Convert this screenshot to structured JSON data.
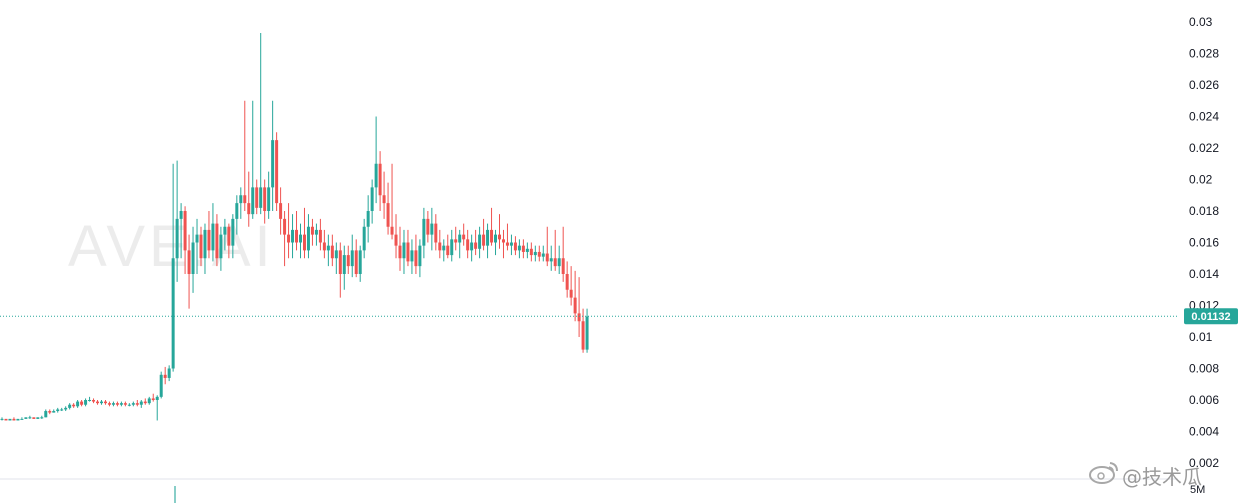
{
  "chart_data": {
    "type": "candlestick",
    "title": "",
    "xlabel": "",
    "ylabel": "",
    "ylim": [
      0.002,
      0.03
    ],
    "y_ticks": [
      "0.03",
      "0.028",
      "0.026",
      "0.024",
      "0.022",
      "0.02",
      "0.018",
      "0.016",
      "0.014",
      "0.012",
      "0.01",
      "0.008",
      "0.006",
      "0.004",
      "0.002"
    ],
    "grid": false,
    "current_price": 0.01132,
    "current_price_label": "0.01132",
    "interval_label": "5M",
    "colors": {
      "up": "#26a69a",
      "down": "#ef5350",
      "price_line": "#26a69a",
      "axis_text": "#131722"
    },
    "candles": [
      [
        0.0048,
        0.0049,
        0.0047,
        0.0048
      ],
      [
        0.0048,
        0.0048,
        0.0047,
        0.0047
      ],
      [
        0.0047,
        0.0048,
        0.0047,
        0.0048
      ],
      [
        0.0048,
        0.0049,
        0.0047,
        0.0047
      ],
      [
        0.0047,
        0.0048,
        0.0047,
        0.0048
      ],
      [
        0.0048,
        0.0049,
        0.0048,
        0.0048
      ],
      [
        0.0048,
        0.0049,
        0.0048,
        0.0049
      ],
      [
        0.0049,
        0.005,
        0.0048,
        0.0049
      ],
      [
        0.0049,
        0.0049,
        0.0048,
        0.0048
      ],
      [
        0.0048,
        0.0049,
        0.0048,
        0.0049
      ],
      [
        0.0049,
        0.005,
        0.0048,
        0.0049
      ],
      [
        0.0049,
        0.0054,
        0.0049,
        0.0053
      ],
      [
        0.0053,
        0.0054,
        0.0051,
        0.0052
      ],
      [
        0.0052,
        0.0054,
        0.0052,
        0.0053
      ],
      [
        0.0053,
        0.0055,
        0.0052,
        0.0054
      ],
      [
        0.0054,
        0.0055,
        0.0053,
        0.0054
      ],
      [
        0.0054,
        0.0056,
        0.0053,
        0.0055
      ],
      [
        0.0055,
        0.0058,
        0.0054,
        0.0057
      ],
      [
        0.0057,
        0.0058,
        0.0055,
        0.0056
      ],
      [
        0.0056,
        0.006,
        0.0055,
        0.0059
      ],
      [
        0.0059,
        0.006,
        0.0056,
        0.0057
      ],
      [
        0.0057,
        0.0061,
        0.0056,
        0.006
      ],
      [
        0.006,
        0.0062,
        0.0059,
        0.006
      ],
      [
        0.006,
        0.0061,
        0.0058,
        0.0059
      ],
      [
        0.0059,
        0.006,
        0.0057,
        0.0058
      ],
      [
        0.0058,
        0.006,
        0.0057,
        0.0059
      ],
      [
        0.0059,
        0.006,
        0.0057,
        0.0058
      ],
      [
        0.0058,
        0.0059,
        0.0056,
        0.0057
      ],
      [
        0.0057,
        0.0059,
        0.0056,
        0.0058
      ],
      [
        0.0058,
        0.0059,
        0.0056,
        0.0057
      ],
      [
        0.0057,
        0.0059,
        0.0056,
        0.0058
      ],
      [
        0.0058,
        0.0059,
        0.0056,
        0.0057
      ],
      [
        0.0057,
        0.0058,
        0.0056,
        0.0057
      ],
      [
        0.0057,
        0.0059,
        0.0056,
        0.0058
      ],
      [
        0.0058,
        0.006,
        0.0056,
        0.0057
      ],
      [
        0.0057,
        0.006,
        0.0055,
        0.0059
      ],
      [
        0.0059,
        0.0061,
        0.0057,
        0.0058
      ],
      [
        0.0058,
        0.0062,
        0.0057,
        0.0061
      ],
      [
        0.0061,
        0.0064,
        0.0059,
        0.006
      ],
      [
        0.006,
        0.0063,
        0.0047,
        0.0062
      ],
      [
        0.0062,
        0.0078,
        0.0061,
        0.0076
      ],
      [
        0.0076,
        0.0081,
        0.007,
        0.0074
      ],
      [
        0.0074,
        0.0082,
        0.0072,
        0.008
      ],
      [
        0.008,
        0.021,
        0.0078,
        0.015
      ],
      [
        0.015,
        0.0212,
        0.0135,
        0.0175
      ],
      [
        0.0175,
        0.0185,
        0.015,
        0.018
      ],
      [
        0.018,
        0.0183,
        0.014,
        0.0155
      ],
      [
        0.0155,
        0.0165,
        0.0118,
        0.014
      ],
      [
        0.014,
        0.017,
        0.0128,
        0.016
      ],
      [
        0.016,
        0.0175,
        0.014,
        0.0165
      ],
      [
        0.0165,
        0.017,
        0.0145,
        0.015
      ],
      [
        0.015,
        0.0172,
        0.014,
        0.0168
      ],
      [
        0.0168,
        0.018,
        0.015,
        0.0155
      ],
      [
        0.0155,
        0.0185,
        0.0148,
        0.0172
      ],
      [
        0.0172,
        0.0178,
        0.0145,
        0.015
      ],
      [
        0.015,
        0.017,
        0.0142,
        0.0165
      ],
      [
        0.0165,
        0.0175,
        0.0155,
        0.017
      ],
      [
        0.017,
        0.0172,
        0.015,
        0.0158
      ],
      [
        0.0158,
        0.0178,
        0.015,
        0.0175
      ],
      [
        0.0175,
        0.019,
        0.0165,
        0.0185
      ],
      [
        0.0185,
        0.0195,
        0.0175,
        0.019
      ],
      [
        0.019,
        0.025,
        0.018,
        0.0185
      ],
      [
        0.0185,
        0.0205,
        0.017,
        0.0178
      ],
      [
        0.0178,
        0.025,
        0.0175,
        0.0195
      ],
      [
        0.0195,
        0.02,
        0.0178,
        0.0182
      ],
      [
        0.0182,
        0.0293,
        0.0178,
        0.0195
      ],
      [
        0.0195,
        0.02,
        0.0172,
        0.018
      ],
      [
        0.018,
        0.0205,
        0.0175,
        0.0195
      ],
      [
        0.0195,
        0.025,
        0.018,
        0.0225
      ],
      [
        0.0225,
        0.023,
        0.018,
        0.0185
      ],
      [
        0.0185,
        0.0195,
        0.0165,
        0.0175
      ],
      [
        0.0175,
        0.018,
        0.0145,
        0.0165
      ],
      [
        0.0165,
        0.0185,
        0.015,
        0.016
      ],
      [
        0.016,
        0.0178,
        0.015,
        0.0168
      ],
      [
        0.0168,
        0.018,
        0.0155,
        0.016
      ],
      [
        0.016,
        0.0172,
        0.015,
        0.0165
      ],
      [
        0.0165,
        0.0182,
        0.015,
        0.0155
      ],
      [
        0.0155,
        0.0178,
        0.015,
        0.017
      ],
      [
        0.017,
        0.0175,
        0.0158,
        0.0165
      ],
      [
        0.0165,
        0.0172,
        0.0158,
        0.0168
      ],
      [
        0.0168,
        0.0175,
        0.0155,
        0.016
      ],
      [
        0.016,
        0.0168,
        0.015,
        0.0155
      ],
      [
        0.0155,
        0.0165,
        0.0145,
        0.0158
      ],
      [
        0.0158,
        0.0165,
        0.0145,
        0.015
      ],
      [
        0.015,
        0.016,
        0.014,
        0.0155
      ],
      [
        0.0155,
        0.016,
        0.0125,
        0.014
      ],
      [
        0.014,
        0.0158,
        0.013,
        0.0152
      ],
      [
        0.0152,
        0.0158,
        0.014,
        0.0145
      ],
      [
        0.0145,
        0.0165,
        0.0138,
        0.0155
      ],
      [
        0.0155,
        0.0162,
        0.0138,
        0.014
      ],
      [
        0.014,
        0.0158,
        0.0135,
        0.0155
      ],
      [
        0.0155,
        0.0175,
        0.015,
        0.017
      ],
      [
        0.017,
        0.019,
        0.016,
        0.018
      ],
      [
        0.018,
        0.02,
        0.0172,
        0.0195
      ],
      [
        0.0195,
        0.024,
        0.0185,
        0.021
      ],
      [
        0.021,
        0.0218,
        0.018,
        0.019
      ],
      [
        0.019,
        0.0205,
        0.0175,
        0.0185
      ],
      [
        0.0185,
        0.0198,
        0.0165,
        0.017
      ],
      [
        0.017,
        0.021,
        0.0162,
        0.0165
      ],
      [
        0.0165,
        0.0178,
        0.015,
        0.0158
      ],
      [
        0.0158,
        0.017,
        0.0142,
        0.015
      ],
      [
        0.015,
        0.0168,
        0.014,
        0.016
      ],
      [
        0.016,
        0.0168,
        0.0145,
        0.0148
      ],
      [
        0.0148,
        0.0162,
        0.014,
        0.0155
      ],
      [
        0.0155,
        0.0165,
        0.014,
        0.0145
      ],
      [
        0.0145,
        0.0162,
        0.0138,
        0.0158
      ],
      [
        0.0158,
        0.0182,
        0.015,
        0.0175
      ],
      [
        0.0175,
        0.018,
        0.016,
        0.0165
      ],
      [
        0.0165,
        0.0182,
        0.0155,
        0.0172
      ],
      [
        0.0172,
        0.0178,
        0.0155,
        0.016
      ],
      [
        0.016,
        0.0168,
        0.015,
        0.0155
      ],
      [
        0.0155,
        0.0162,
        0.0148,
        0.0158
      ],
      [
        0.0158,
        0.0165,
        0.015,
        0.0152
      ],
      [
        0.0152,
        0.0168,
        0.0148,
        0.0162
      ],
      [
        0.0162,
        0.017,
        0.0155,
        0.016
      ],
      [
        0.016,
        0.0168,
        0.015,
        0.0165
      ],
      [
        0.0165,
        0.0172,
        0.0158,
        0.0162
      ],
      [
        0.0162,
        0.0168,
        0.015,
        0.0155
      ],
      [
        0.0155,
        0.0165,
        0.0148,
        0.016
      ],
      [
        0.016,
        0.0168,
        0.0152,
        0.0156
      ],
      [
        0.0156,
        0.017,
        0.015,
        0.0165
      ],
      [
        0.0165,
        0.0175,
        0.0155,
        0.0158
      ],
      [
        0.0158,
        0.0172,
        0.015,
        0.0168
      ],
      [
        0.0168,
        0.0182,
        0.0158,
        0.016
      ],
      [
        0.016,
        0.0168,
        0.0152,
        0.0165
      ],
      [
        0.0165,
        0.0178,
        0.0156,
        0.0162
      ],
      [
        0.0162,
        0.0168,
        0.015,
        0.016
      ],
      [
        0.016,
        0.0172,
        0.0155,
        0.0158
      ],
      [
        0.0158,
        0.0165,
        0.0152,
        0.016
      ],
      [
        0.016,
        0.0164,
        0.0152,
        0.0155
      ],
      [
        0.0155,
        0.0162,
        0.015,
        0.0158
      ],
      [
        0.0158,
        0.0162,
        0.015,
        0.0154
      ],
      [
        0.0154,
        0.016,
        0.015,
        0.0156
      ],
      [
        0.0156,
        0.016,
        0.0148,
        0.0152
      ],
      [
        0.0152,
        0.0158,
        0.0148,
        0.0154
      ],
      [
        0.0154,
        0.0158,
        0.0148,
        0.0151
      ],
      [
        0.0151,
        0.0158,
        0.0148,
        0.0153
      ],
      [
        0.0153,
        0.017,
        0.0145,
        0.0148
      ],
      [
        0.0148,
        0.0158,
        0.0142,
        0.015
      ],
      [
        0.015,
        0.0168,
        0.0142,
        0.0145
      ],
      [
        0.0145,
        0.0158,
        0.014,
        0.015
      ],
      [
        0.015,
        0.017,
        0.0135,
        0.014
      ],
      [
        0.014,
        0.0148,
        0.0125,
        0.013
      ],
      [
        0.013,
        0.0145,
        0.012,
        0.0125
      ],
      [
        0.0125,
        0.0142,
        0.011,
        0.0115
      ],
      [
        0.0115,
        0.0138,
        0.01,
        0.011
      ],
      [
        0.011,
        0.0118,
        0.009,
        0.0092
      ],
      [
        0.0092,
        0.0118,
        0.009,
        0.0113
      ]
    ]
  },
  "watermark": {
    "text": "AVE.AI"
  },
  "social_watermark": {
    "text": "@技术瓜",
    "icon": "weibo-icon"
  }
}
